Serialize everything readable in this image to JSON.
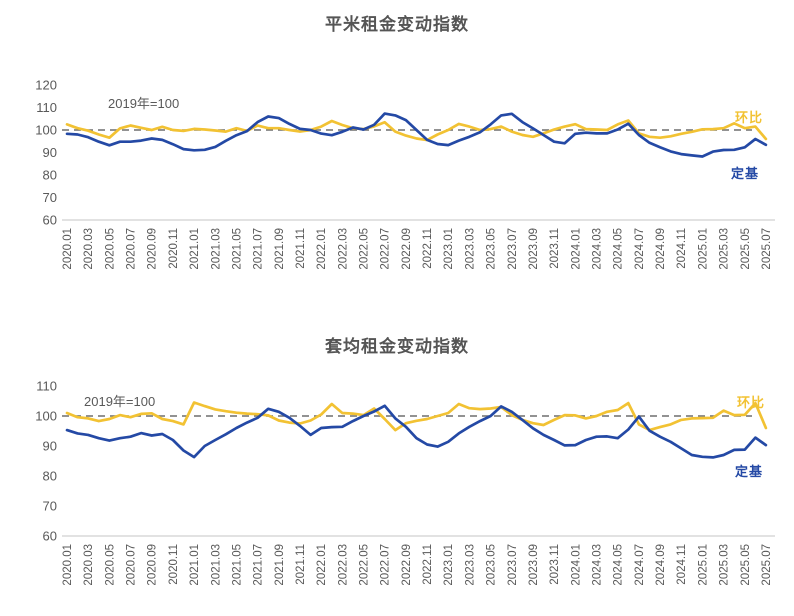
{
  "page": {
    "background": "#ffffff"
  },
  "colors": {
    "mom_line": "#F2C233",
    "fixed_base_line": "#2449A5",
    "baseline_dash": "#6E6E6E",
    "axis_line": "#D9D9D9",
    "tick_text": "#595959",
    "title_text": "#555555"
  },
  "chart_data": {
    "type": "line",
    "x_tick_step": 2,
    "categories": [
      "2020.01",
      "2020.02",
      "2020.03",
      "2020.04",
      "2020.05",
      "2020.06",
      "2020.07",
      "2020.08",
      "2020.09",
      "2020.10",
      "2020.11",
      "2020.12",
      "2021.01",
      "2021.02",
      "2021.03",
      "2021.04",
      "2021.05",
      "2021.06",
      "2021.07",
      "2021.08",
      "2021.09",
      "2021.10",
      "2021.11",
      "2021.12",
      "2022.01",
      "2022.02",
      "2022.03",
      "2022.04",
      "2022.05",
      "2022.06",
      "2022.07",
      "2022.08",
      "2022.09",
      "2022.10",
      "2022.11",
      "2022.12",
      "2023.01",
      "2023.02",
      "2023.03",
      "2023.04",
      "2023.05",
      "2023.06",
      "2023.07",
      "2023.08",
      "2023.09",
      "2023.10",
      "2023.11",
      "2023.12",
      "2024.01",
      "2024.02",
      "2024.03",
      "2024.04",
      "2024.05",
      "2024.06",
      "2024.07",
      "2024.08",
      "2024.09",
      "2024.10",
      "2024.11",
      "2024.12",
      "2025.01",
      "2025.02",
      "2025.03",
      "2025.04",
      "2025.05",
      "2025.06",
      "2025.07"
    ],
    "charts": [
      {
        "title": "平米租金变动指数",
        "annotation": "2019年=100",
        "ylim": [
          60,
          120
        ],
        "yticks": [
          120,
          110,
          100,
          90,
          80,
          70,
          60
        ],
        "baseline": 100,
        "grid": false,
        "legend_position": "line-end-labels",
        "series": [
          {
            "name": "环比",
            "color": "#F2C233",
            "values": [
              102.5,
              100.8,
              99.7,
              98.0,
              96.6,
              100.7,
              102.0,
              101.0,
              100.0,
              101.4,
              100.0,
              99.6,
              100.5,
              100.2,
              99.8,
              99.3,
              100.8,
              99.6,
              102.0,
              100.8,
              100.8,
              100.0,
              99.3,
              100.0,
              101.5,
              104.0,
              102.2,
              100.8,
              100.4,
              101.6,
              103.4,
              99.3,
              97.5,
              96.2,
              95.5,
              98.0,
              100.0,
              102.7,
              101.5,
              100.0,
              100.4,
              101.5,
              99.3,
              97.8,
              97.0,
              98.5,
              100.2,
              101.5,
              102.6,
              100.4,
              100.2,
              100.0,
              102.5,
              104.2,
              98.5,
              97.0,
              96.6,
              97.2,
              98.3,
              99.2,
              100.3,
              100.4,
              100.8,
              103.0,
              100.8,
              101.5,
              96.0
            ]
          },
          {
            "name": "定基",
            "color": "#2449A5",
            "values": [
              98.3,
              98.0,
              96.8,
              94.8,
              93.2,
              94.8,
              94.8,
              95.3,
              96.2,
              95.6,
              93.7,
              91.5,
              91.0,
              91.2,
              92.5,
              95.2,
              97.7,
              99.5,
              103.5,
              106.0,
              105.3,
              102.7,
              100.5,
              100.0,
              98.4,
              97.7,
              99.2,
              101.1,
              100.2,
              102.3,
              107.3,
              106.5,
              104.4,
              100.0,
              95.6,
              93.8,
              93.3,
              95.3,
              97.0,
              99.0,
              102.5,
              106.5,
              107.2,
              103.5,
              100.7,
              97.8,
              94.8,
              94.1,
              98.3,
              98.8,
              98.5,
              98.5,
              100.2,
              102.8,
              97.8,
              94.3,
              92.3,
              90.5,
              89.3,
              88.7,
              88.2,
              90.4,
              91.1,
              91.2,
              92.3,
              96.0,
              93.4
            ]
          }
        ]
      },
      {
        "title": "套均租金变动指数",
        "annotation": "2019年=100",
        "ylim": [
          60,
          110
        ],
        "yticks": [
          110,
          100,
          90,
          80,
          70,
          60
        ],
        "baseline": 100,
        "grid": false,
        "legend_position": "line-end-labels",
        "series": [
          {
            "name": "环比",
            "color": "#F2C233",
            "values": [
              101.0,
              99.6,
              99.2,
              98.3,
              99.0,
              100.3,
              99.6,
              100.7,
              100.9,
              99.0,
              98.3,
              97.2,
              104.5,
              103.3,
              102.2,
              101.6,
              101.1,
              100.8,
              100.6,
              100.2,
              98.5,
              97.8,
              97.5,
              98.5,
              100.5,
              104.0,
              101.0,
              100.8,
              100.3,
              102.5,
              99.0,
              95.3,
              97.6,
              98.4,
              99.0,
              100.0,
              101.0,
              104.0,
              102.6,
              102.3,
              102.5,
              103.0,
              100.3,
              98.7,
              97.6,
              97.0,
              98.7,
              100.3,
              100.2,
              99.2,
              100.0,
              101.4,
              102.0,
              104.3,
              97.2,
              95.3,
              96.3,
              97.2,
              98.7,
              99.2,
              99.3,
              99.4,
              101.8,
              100.3,
              100.4,
              104.3,
              96.0
            ]
          },
          {
            "name": "定基",
            "color": "#2449A5",
            "values": [
              95.3,
              94.2,
              93.7,
              92.6,
              91.8,
              92.6,
              93.1,
              94.3,
              93.5,
              94.0,
              92.0,
              88.5,
              86.3,
              90.0,
              92.0,
              93.9,
              96.0,
              97.8,
              99.4,
              102.4,
              101.4,
              99.4,
              96.7,
              93.7,
              96.0,
              96.3,
              96.4,
              98.3,
              100.0,
              101.5,
              103.4,
              99.2,
              96.4,
              92.6,
              90.5,
              89.8,
              91.4,
              94.2,
              96.4,
              98.3,
              100.0,
              103.2,
              101.4,
              98.7,
              95.9,
              93.7,
              92.0,
              90.2,
              90.3,
              92.0,
              93.1,
              93.2,
              92.6,
              95.5,
              99.8,
              95.1,
              93.1,
              91.4,
              89.2,
              87.0,
              86.4,
              86.2,
              87.0,
              88.7,
              88.8,
              92.8,
              90.3
            ]
          }
        ]
      }
    ]
  }
}
